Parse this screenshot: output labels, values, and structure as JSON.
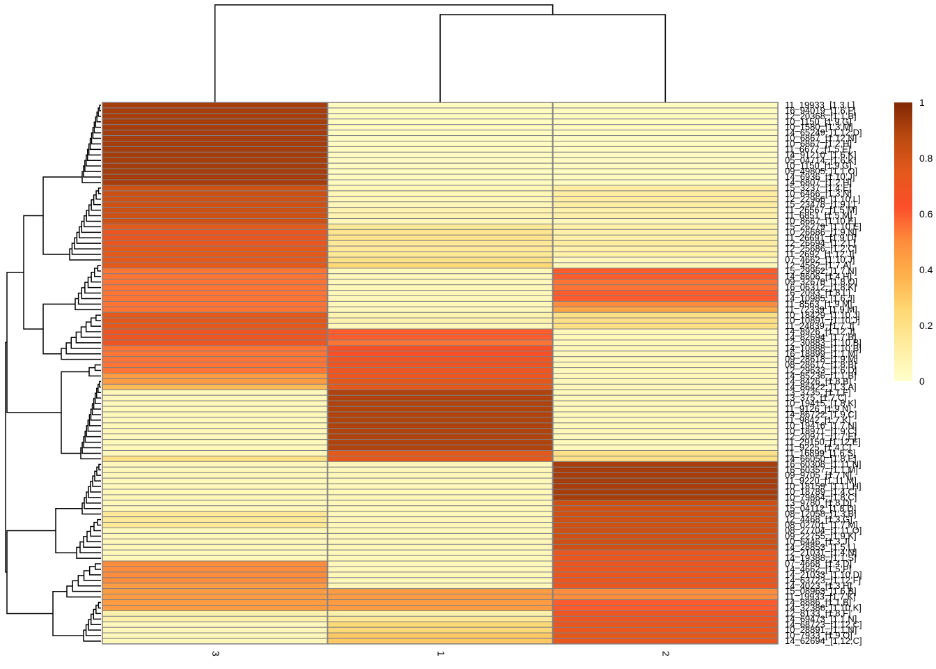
{
  "chart_data": {
    "type": "heatmap",
    "columns": [
      "3",
      "1",
      "2"
    ],
    "rows": [
      "11_19933_[1,3,L]",
      "16_94019_[1,6,F]",
      "12_20368_[1,1,B]",
      "10_1150_[1,9,G]",
      "10_1580_[1,3,M]",
      "14_65249_[1,12,D]",
      "10_6867_[1,12,N]",
      "10_6867_[1,2,H]",
      "11_6677_[1,5,E]",
      "14_91210_[1,6,K]",
      "05_04714_[1,6,K]",
      "10_1150_[1,9,G]",
      "09_49805_[1,1,O]",
      "14_6936_[1,10,J]",
      "14_6807_[1,2,H]",
      "15_3237_[1,4,E]",
      "10_6466_[1,3,N]",
      "12_22966_[1,10,L]",
      "15_23478_[1,9,L]",
      "11_26567_[1,5,M]",
      "11_6851_[1,5,M]",
      "10_8667_[1,10,E]",
      "15_26279_[1,10,E]",
      "10_26686_[1,9,N]",
      "11_26691_[1,9,D]",
      "12_26694_[1,2,L]",
      "12_25686_[1,2,C]",
      "11_2692_[1,12,J]",
      "07_4662_[1,10,J]",
      "12_4562_[1,7,A]",
      "15_29962_[1,7,N]",
      "14_8606_[1,4,H]",
      "09_32678_[1,8,O]",
      "16_06312_[1,8,K]",
      "16_2093_[1,8,L]",
      "14_10985_[1,6,J]",
      "11_8563_[1,9,M]",
      "11_72339_[1,9,M]",
      "10_18429_[1,10,J]",
      "10_10891_[1,10,J]",
      "11_24839_[1,7,J]",
      "14_8926_[1,12,J]",
      "14_82694_[1,7,B]",
      "12_30883_[1,10,B]",
      "14_10888_[1,10,B]",
      "16_18899_[1,1,M]",
      "09_28618_[1,9,M]",
      "08_28617_[1,8,B]",
      "12_29633_[1,6,D]",
      "14_85236_[1,1,B]",
      "14_8426_[1,8,B]",
      "14_86422_[1,3,A]",
      "13_3735_[1,1,F]",
      "13_375_[1,7,C]",
      "10_19415_[1,8,K]",
      "11_9126_[1,9,N]",
      "14_86722_[1,9,C]",
      "11_9842_[1,7,K]",
      "10_19416_[1,7,N]",
      "10_18971_[1,9,C]",
      "12_20971_[1,7,E]",
      "11_29150_[1,12,E]",
      "11_9225_[1,4,C]",
      "11_16899_[1,6,S]",
      "14_66050_[1,8,E]",
      "16_60308_[1,11,N]",
      "16_60357_[1,1,M]",
      "09_9705_[1,7,N]",
      "11_9220_[1,11,M]",
      "10_18159_[1,11,H]",
      "10_18789_[1,4,C]",
      "10_79864_[1,8,C]",
      "13_9780_[1,8,D]",
      "15_04112_[1,8,D]",
      "08_12058_[1,3,B]",
      "12_4468_[1,3,G]",
      "08_02701_[1,7,M]",
      "08_27704_[1,11,O]",
      "09_22755_[1,9,K]",
      "10_6446_[1,3,J]",
      "14_28853_[1,5,L]",
      "12_21031_[1,4,N]",
      "14_19388_[1,1,S]",
      "07_4668_[1,4,D]",
      "14_4662_[1,5,P]",
      "14_21033_[1,10,D]",
      "14_63723_[1,12,F]",
      "14_4023_[1,3,H]",
      "15_08963_[1,6,B]",
      "11_19933_[1,7,K]",
      "14_8886_[1,1,B]",
      "14_32386_[1,10,K]",
      "12_8133_[1,8,F]",
      "14_69473_[1,1,N]",
      "14_68723_[1,12,C]",
      "10_28891_[1,1,N]",
      "10_7933_[1,9,O]",
      "14_62694_[1,12,C]"
    ],
    "values": [
      [
        0.92,
        0.03,
        0.03
      ],
      [
        0.92,
        0.03,
        0.03
      ],
      [
        0.92,
        0.03,
        0.03
      ],
      [
        0.92,
        0.03,
        0.03
      ],
      [
        0.92,
        0.03,
        0.03
      ],
      [
        0.92,
        0.03,
        0.03
      ],
      [
        0.92,
        0.03,
        0.03
      ],
      [
        0.92,
        0.03,
        0.03
      ],
      [
        0.92,
        0.03,
        0.03
      ],
      [
        0.92,
        0.03,
        0.03
      ],
      [
        0.92,
        0.03,
        0.03
      ],
      [
        0.92,
        0.03,
        0.03
      ],
      [
        0.92,
        0.03,
        0.03
      ],
      [
        0.92,
        0.03,
        0.03
      ],
      [
        0.92,
        0.03,
        0.03
      ],
      [
        0.82,
        0.06,
        0.12
      ],
      [
        0.82,
        0.06,
        0.12
      ],
      [
        0.82,
        0.06,
        0.12
      ],
      [
        0.82,
        0.06,
        0.12
      ],
      [
        0.82,
        0.08,
        0.1
      ],
      [
        0.82,
        0.08,
        0.1
      ],
      [
        0.82,
        0.05,
        0.05
      ],
      [
        0.75,
        0.15,
        0.1
      ],
      [
        0.72,
        0.18,
        0.1
      ],
      [
        0.72,
        0.18,
        0.1
      ],
      [
        0.72,
        0.15,
        0.13
      ],
      [
        0.75,
        0.15,
        0.1
      ],
      [
        0.75,
        0.15,
        0.1
      ],
      [
        0.75,
        0.2,
        0.05
      ],
      [
        0.75,
        0.25,
        0.05
      ],
      [
        0.55,
        0.05,
        0.6
      ],
      [
        0.55,
        0.05,
        0.6
      ],
      [
        0.55,
        0.05,
        0.55
      ],
      [
        0.55,
        0.05,
        0.55
      ],
      [
        0.55,
        0.05,
        0.6
      ],
      [
        0.55,
        0.05,
        0.6
      ],
      [
        0.55,
        0.05,
        0.5
      ],
      [
        0.55,
        0.05,
        0.42
      ],
      [
        0.75,
        0.08,
        0.2
      ],
      [
        0.75,
        0.08,
        0.2
      ],
      [
        0.75,
        0.05,
        0.2
      ],
      [
        0.7,
        0.6,
        0.05
      ],
      [
        0.7,
        0.6,
        0.05
      ],
      [
        0.7,
        0.55,
        0.05
      ],
      [
        0.55,
        0.65,
        0.05
      ],
      [
        0.55,
        0.65,
        0.05
      ],
      [
        0.55,
        0.7,
        0.05
      ],
      [
        0.55,
        0.7,
        0.05
      ],
      [
        0.55,
        0.7,
        0.05
      ],
      [
        0.45,
        0.7,
        0.05
      ],
      [
        0.45,
        0.75,
        0.05
      ],
      [
        0.35,
        0.75,
        0.05
      ],
      [
        0.05,
        0.9,
        0.05
      ],
      [
        0.05,
        0.9,
        0.05
      ],
      [
        0.05,
        0.9,
        0.05
      ],
      [
        0.05,
        0.9,
        0.05
      ],
      [
        0.05,
        0.9,
        0.05
      ],
      [
        0.05,
        0.9,
        0.05
      ],
      [
        0.05,
        0.9,
        0.05
      ],
      [
        0.05,
        0.9,
        0.05
      ],
      [
        0.05,
        0.9,
        0.05
      ],
      [
        0.05,
        0.9,
        0.05
      ],
      [
        0.05,
        0.9,
        0.05
      ],
      [
        0.05,
        0.75,
        0.2
      ],
      [
        0.2,
        0.75,
        0.2
      ],
      [
        0.05,
        0.05,
        0.92
      ],
      [
        0.05,
        0.05,
        0.92
      ],
      [
        0.05,
        0.05,
        0.92
      ],
      [
        0.05,
        0.05,
        0.92
      ],
      [
        0.05,
        0.05,
        0.92
      ],
      [
        0.05,
        0.05,
        0.92
      ],
      [
        0.05,
        0.05,
        0.92
      ],
      [
        0.05,
        0.05,
        0.82
      ],
      [
        0.05,
        0.05,
        0.82
      ],
      [
        0.15,
        0.05,
        0.82
      ],
      [
        0.15,
        0.05,
        0.82
      ],
      [
        0.15,
        0.05,
        0.82
      ],
      [
        0.05,
        0.05,
        0.82
      ],
      [
        0.05,
        0.05,
        0.82
      ],
      [
        0.05,
        0.05,
        0.82
      ],
      [
        0.05,
        0.05,
        0.82
      ],
      [
        0.05,
        0.05,
        0.72
      ],
      [
        0.05,
        0.05,
        0.72
      ],
      [
        0.5,
        0.05,
        0.72
      ],
      [
        0.5,
        0.05,
        0.72
      ],
      [
        0.5,
        0.05,
        0.72
      ],
      [
        0.5,
        0.05,
        0.72
      ],
      [
        0.45,
        0.05,
        0.72
      ],
      [
        0.45,
        0.45,
        0.5
      ],
      [
        0.45,
        0.45,
        0.5
      ],
      [
        0.45,
        0.45,
        0.6
      ],
      [
        0.45,
        0.45,
        0.6
      ],
      [
        0.1,
        0.1,
        0.7
      ],
      [
        0.1,
        0.15,
        0.7
      ],
      [
        0.05,
        0.25,
        0.72
      ],
      [
        0.05,
        0.25,
        0.72
      ],
      [
        0.05,
        0.3,
        0.75
      ],
      [
        0.05,
        0.3,
        0.72
      ]
    ],
    "legend": {
      "ticks": [
        "0",
        "0.2",
        "0.4",
        "0.6",
        "0.8",
        "1"
      ],
      "tick_values": [
        0,
        0.2,
        0.4,
        0.6,
        0.8,
        1
      ],
      "range": [
        0,
        1
      ]
    },
    "color_scale": [
      "#FFFFCC",
      "#FFEDA0",
      "#FED976",
      "#FEB24C",
      "#FD8D3C",
      "#FC4E2A",
      "#E3591C",
      "#BB4A10",
      "#7F2704"
    ],
    "cell_border_color": "#808080"
  }
}
